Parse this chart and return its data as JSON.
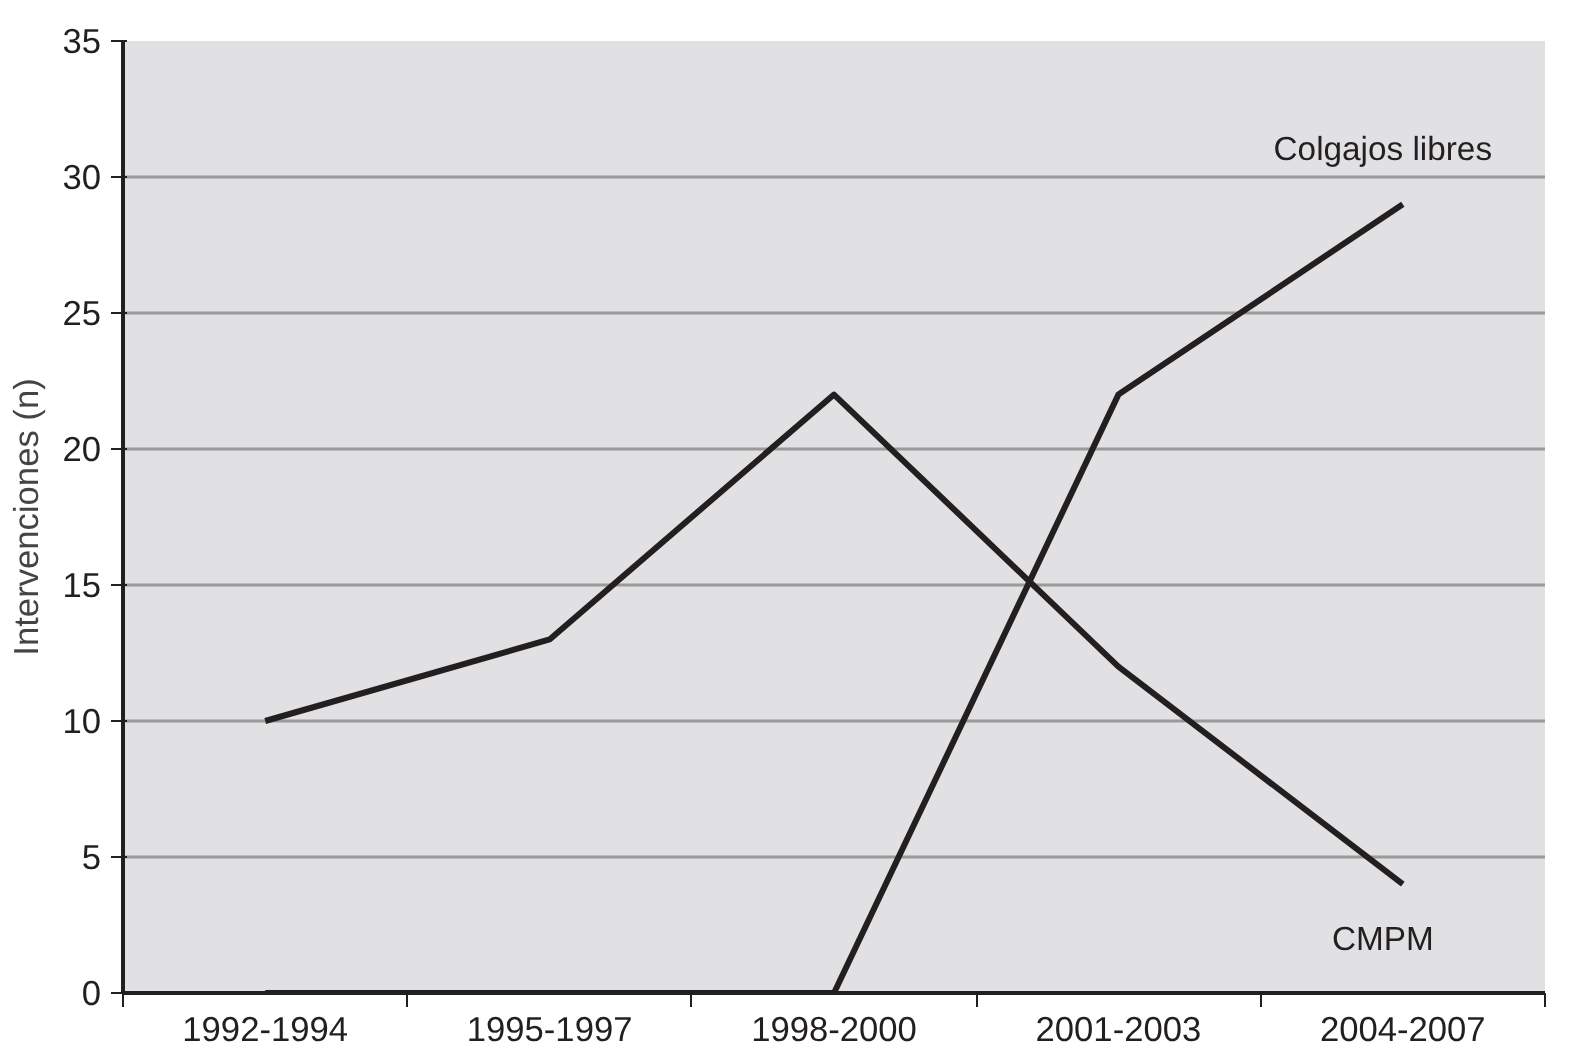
{
  "chart_data": {
    "type": "line",
    "ylabel": "Intervenciones (n)",
    "categories": [
      "1992-1994",
      "1995-1997",
      "1998-2000",
      "2001-2003",
      "2004-2007"
    ],
    "series": [
      {
        "name": "CMPM",
        "color": "#231f20",
        "values": [
          10,
          13,
          22,
          12,
          4
        ]
      },
      {
        "name": "Colgajos libres",
        "color": "#231f20",
        "values": [
          0,
          0,
          0,
          22,
          29
        ]
      }
    ],
    "ylim": [
      0,
      35
    ],
    "yticks": [
      0,
      5,
      10,
      15,
      20,
      25,
      30,
      35
    ],
    "grid": "y",
    "marker": "none",
    "line_style": "solid"
  }
}
